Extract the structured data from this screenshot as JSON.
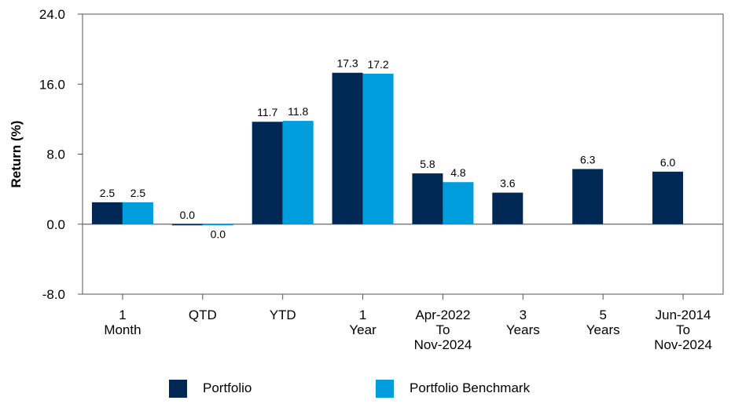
{
  "chart_data": {
    "type": "bar",
    "y_axis_label": "Return (%)",
    "categories": [
      "1\nMonth",
      "QTD",
      "YTD",
      "1\nYear",
      "Apr-2022\nTo\nNov-2024",
      "3\nYears",
      "5\nYears",
      "Jun-2014\nTo\nNov-2024"
    ],
    "series": [
      {
        "name": "Portfolio",
        "color": "#002855",
        "values": [
          2.5,
          0.0,
          11.7,
          17.3,
          5.8,
          3.6,
          6.3,
          6.0
        ],
        "value_labels": [
          "2.5",
          "0.0",
          "11.7",
          "17.3",
          "5.8",
          "3.6",
          "6.3",
          "6.0"
        ]
      },
      {
        "name": "Portfolio Benchmark",
        "color": "#009ddc",
        "values": [
          2.5,
          -0.04,
          11.8,
          17.2,
          4.8,
          null,
          null,
          null
        ],
        "value_labels": [
          "2.5",
          "0.0",
          "11.8",
          "17.2",
          "4.8",
          null,
          null,
          null
        ]
      }
    ],
    "ylim": [
      -8,
      24
    ],
    "yticks": [
      {
        "value": -8,
        "label": "-8.0"
      },
      {
        "value": 0,
        "label": "0.0"
      },
      {
        "value": 8,
        "label": "8.0"
      },
      {
        "value": 16,
        "label": "16.0"
      },
      {
        "value": 24,
        "label": "24.0"
      }
    ],
    "legend": "bottom"
  }
}
